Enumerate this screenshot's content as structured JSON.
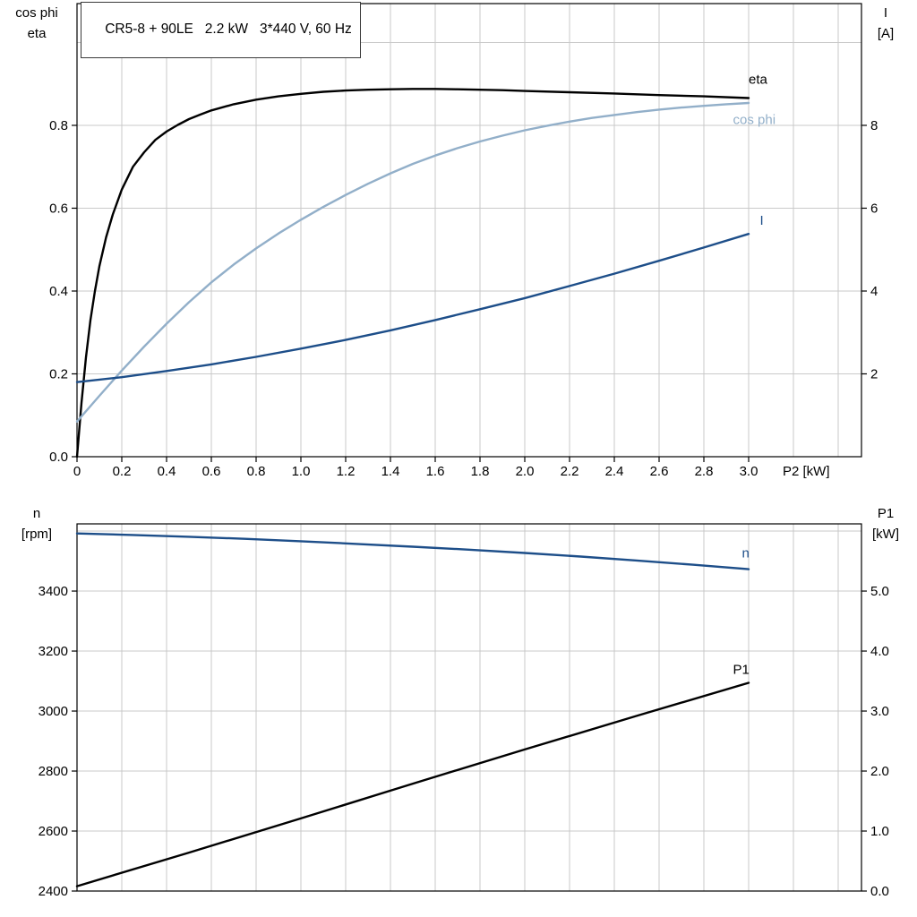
{
  "title_box": "CR5-8 + 90LE   2.2 kW   3*440 V, 60 Hz",
  "colors": {
    "eta": "#000000",
    "cos_phi": "#92afc9",
    "current": "#1d4e89",
    "speed": "#1d4e89",
    "p1": "#000000",
    "grid": "#c9c9c9",
    "axis": "#000000",
    "text": "#000000"
  },
  "chart_data": [
    {
      "type": "line",
      "title": "CR5-8 + 90LE   2.2 kW   3*440 V, 60 Hz",
      "x_axis": {
        "label": "P2 [kW]",
        "range": [
          0,
          3.504
        ],
        "grid_step": 0.2,
        "tick_values": [
          0,
          0.2,
          0.4,
          0.6,
          0.8,
          1.0,
          1.2,
          1.4,
          1.6,
          1.8,
          2.0,
          2.2,
          2.4,
          2.6,
          2.8,
          3.0
        ],
        "tick_labels": [
          "0",
          "0.2",
          "0.4",
          "0.6",
          "0.8",
          "1.0",
          "1.2",
          "1.4",
          "1.6",
          "1.8",
          "2.0",
          "2.2",
          "2.4",
          "2.6",
          "2.8",
          "3.0"
        ]
      },
      "left_axis": {
        "title_lines": [
          "cos phi",
          "eta"
        ],
        "range": [
          0,
          1.094
        ],
        "grid_step": 0.2,
        "tick_values": [
          0.0,
          0.2,
          0.4,
          0.6,
          0.8
        ],
        "tick_labels": [
          "0.0",
          "0.2",
          "0.4",
          "0.6",
          "0.8"
        ]
      },
      "right_axis": {
        "title_lines": [
          "I",
          "[A]"
        ],
        "range": [
          0,
          10.94
        ],
        "grid_step": 2,
        "tick_values": [
          2,
          4,
          6,
          8
        ],
        "tick_labels": [
          "2",
          "4",
          "6",
          "8"
        ]
      },
      "series": [
        {
          "name": "eta",
          "color_key": "eta",
          "axis": "left",
          "label": {
            "text": "eta",
            "x": 3.0,
            "y": 0.9
          },
          "points": [
            [
              0,
              0
            ],
            [
              0.02,
              0.13
            ],
            [
              0.04,
              0.24
            ],
            [
              0.06,
              0.33
            ],
            [
              0.08,
              0.4
            ],
            [
              0.1,
              0.46
            ],
            [
              0.13,
              0.53
            ],
            [
              0.16,
              0.585
            ],
            [
              0.2,
              0.645
            ],
            [
              0.25,
              0.7
            ],
            [
              0.3,
              0.735
            ],
            [
              0.35,
              0.765
            ],
            [
              0.4,
              0.785
            ],
            [
              0.45,
              0.801
            ],
            [
              0.5,
              0.815
            ],
            [
              0.55,
              0.826
            ],
            [
              0.6,
              0.836
            ],
            [
              0.7,
              0.851
            ],
            [
              0.8,
              0.862
            ],
            [
              0.9,
              0.87
            ],
            [
              1.0,
              0.876
            ],
            [
              1.1,
              0.881
            ],
            [
              1.2,
              0.884
            ],
            [
              1.3,
              0.886
            ],
            [
              1.4,
              0.887
            ],
            [
              1.5,
              0.888
            ],
            [
              1.6,
              0.888
            ],
            [
              1.7,
              0.887
            ],
            [
              1.8,
              0.886
            ],
            [
              1.9,
              0.885
            ],
            [
              2.0,
              0.883
            ],
            [
              2.2,
              0.88
            ],
            [
              2.4,
              0.877
            ],
            [
              2.6,
              0.873
            ],
            [
              2.8,
              0.87
            ],
            [
              3.0,
              0.866
            ]
          ]
        },
        {
          "name": "cos phi",
          "color_key": "cos_phi",
          "axis": "left",
          "label": {
            "text": "cos phi",
            "x": 2.93,
            "y": 0.803
          },
          "points": [
            [
              0,
              0.085
            ],
            [
              0.1,
              0.147
            ],
            [
              0.2,
              0.208
            ],
            [
              0.3,
              0.266
            ],
            [
              0.4,
              0.321
            ],
            [
              0.5,
              0.373
            ],
            [
              0.6,
              0.421
            ],
            [
              0.7,
              0.464
            ],
            [
              0.8,
              0.503
            ],
            [
              0.9,
              0.539
            ],
            [
              1.0,
              0.572
            ],
            [
              1.1,
              0.603
            ],
            [
              1.2,
              0.632
            ],
            [
              1.3,
              0.659
            ],
            [
              1.4,
              0.684
            ],
            [
              1.5,
              0.707
            ],
            [
              1.6,
              0.727
            ],
            [
              1.7,
              0.745
            ],
            [
              1.8,
              0.761
            ],
            [
              1.9,
              0.775
            ],
            [
              2.0,
              0.788
            ],
            [
              2.1,
              0.799
            ],
            [
              2.2,
              0.809
            ],
            [
              2.3,
              0.818
            ],
            [
              2.4,
              0.825
            ],
            [
              2.5,
              0.832
            ],
            [
              2.6,
              0.838
            ],
            [
              2.7,
              0.843
            ],
            [
              2.8,
              0.847
            ],
            [
              2.9,
              0.851
            ],
            [
              3.0,
              0.854
            ]
          ]
        },
        {
          "name": "I",
          "color_key": "current",
          "axis": "right",
          "label": {
            "text": "I",
            "x": 3.05,
            "y": 5.6
          },
          "points": [
            [
              0,
              1.8
            ],
            [
              0.2,
              1.92
            ],
            [
              0.4,
              2.07
            ],
            [
              0.6,
              2.23
            ],
            [
              0.8,
              2.41
            ],
            [
              1.0,
              2.61
            ],
            [
              1.2,
              2.82
            ],
            [
              1.4,
              3.05
            ],
            [
              1.6,
              3.3
            ],
            [
              1.8,
              3.56
            ],
            [
              2.0,
              3.83
            ],
            [
              2.2,
              4.12
            ],
            [
              2.4,
              4.42
            ],
            [
              2.6,
              4.73
            ],
            [
              2.8,
              5.05
            ],
            [
              3.0,
              5.38
            ]
          ]
        }
      ]
    },
    {
      "type": "line",
      "title": "",
      "x_axis": {
        "label": "",
        "range": [
          0,
          3.504
        ],
        "grid_step": 0.2,
        "tick_values": [],
        "tick_labels": []
      },
      "left_axis": {
        "title_lines": [
          "n",
          "[rpm]"
        ],
        "range": [
          2400,
          3624
        ],
        "grid_step": 200,
        "tick_values": [
          2400,
          2600,
          2800,
          3000,
          3200,
          3400
        ],
        "tick_labels": [
          "2400",
          "2600",
          "2800",
          "3000",
          "3200",
          "3400"
        ]
      },
      "right_axis": {
        "title_lines": [
          "P1",
          "[kW]"
        ],
        "range": [
          0,
          6.12
        ],
        "grid_step": 1,
        "tick_values": [
          0,
          1,
          2,
          3,
          4,
          5
        ],
        "tick_labels": [
          "0.0",
          "1.0",
          "2.0",
          "3.0",
          "4.0",
          "5.0"
        ]
      },
      "series": [
        {
          "name": "n",
          "color_key": "speed",
          "axis": "left",
          "label": {
            "text": "n",
            "x": 2.97,
            "y": 3512
          },
          "points": [
            [
              0,
              3592
            ],
            [
              0.25,
              3587
            ],
            [
              0.5,
              3581
            ],
            [
              0.75,
              3574
            ],
            [
              1.0,
              3566
            ],
            [
              1.25,
              3557
            ],
            [
              1.5,
              3548
            ],
            [
              1.75,
              3538
            ],
            [
              2.0,
              3527
            ],
            [
              2.25,
              3515
            ],
            [
              2.5,
              3502
            ],
            [
              2.75,
              3488
            ],
            [
              3.0,
              3473
            ]
          ]
        },
        {
          "name": "P1",
          "color_key": "p1",
          "axis": "right",
          "label": {
            "text": "P1",
            "x": 2.93,
            "y": 3.62
          },
          "points": [
            [
              0,
              0.08
            ],
            [
              0.5,
              0.64
            ],
            [
              1.0,
              1.21
            ],
            [
              1.5,
              1.79
            ],
            [
              2.0,
              2.36
            ],
            [
              2.5,
              2.92
            ],
            [
              3.0,
              3.47
            ]
          ]
        }
      ]
    }
  ]
}
